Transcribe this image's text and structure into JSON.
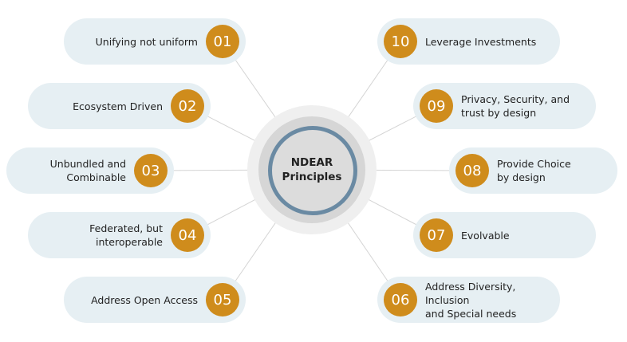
{
  "center": {
    "line1": "NDEAR",
    "line2": "Principles"
  },
  "colors": {
    "pill": "#e6eff3",
    "badge": "#cf8c1c",
    "hub_ring": "#6a8aa3",
    "hub_fill": "#dcdcdc"
  },
  "principles": [
    {
      "num": "01",
      "text": "Unifying not uniform"
    },
    {
      "num": "02",
      "text": "Ecosystem Driven"
    },
    {
      "num": "03",
      "text": "Unbundled and\nCombinable"
    },
    {
      "num": "04",
      "text": "Federated, but\ninteroperable"
    },
    {
      "num": "05",
      "text": "Address Open Access"
    },
    {
      "num": "06",
      "text": "Address Diversity, Inclusion\nand Special needs"
    },
    {
      "num": "07",
      "text": "Evolvable"
    },
    {
      "num": "08",
      "text": "Provide Choice\nby design"
    },
    {
      "num": "09",
      "text": "Privacy, Security, and\ntrust by design"
    },
    {
      "num": "10",
      "text": "Leverage Investments"
    }
  ]
}
